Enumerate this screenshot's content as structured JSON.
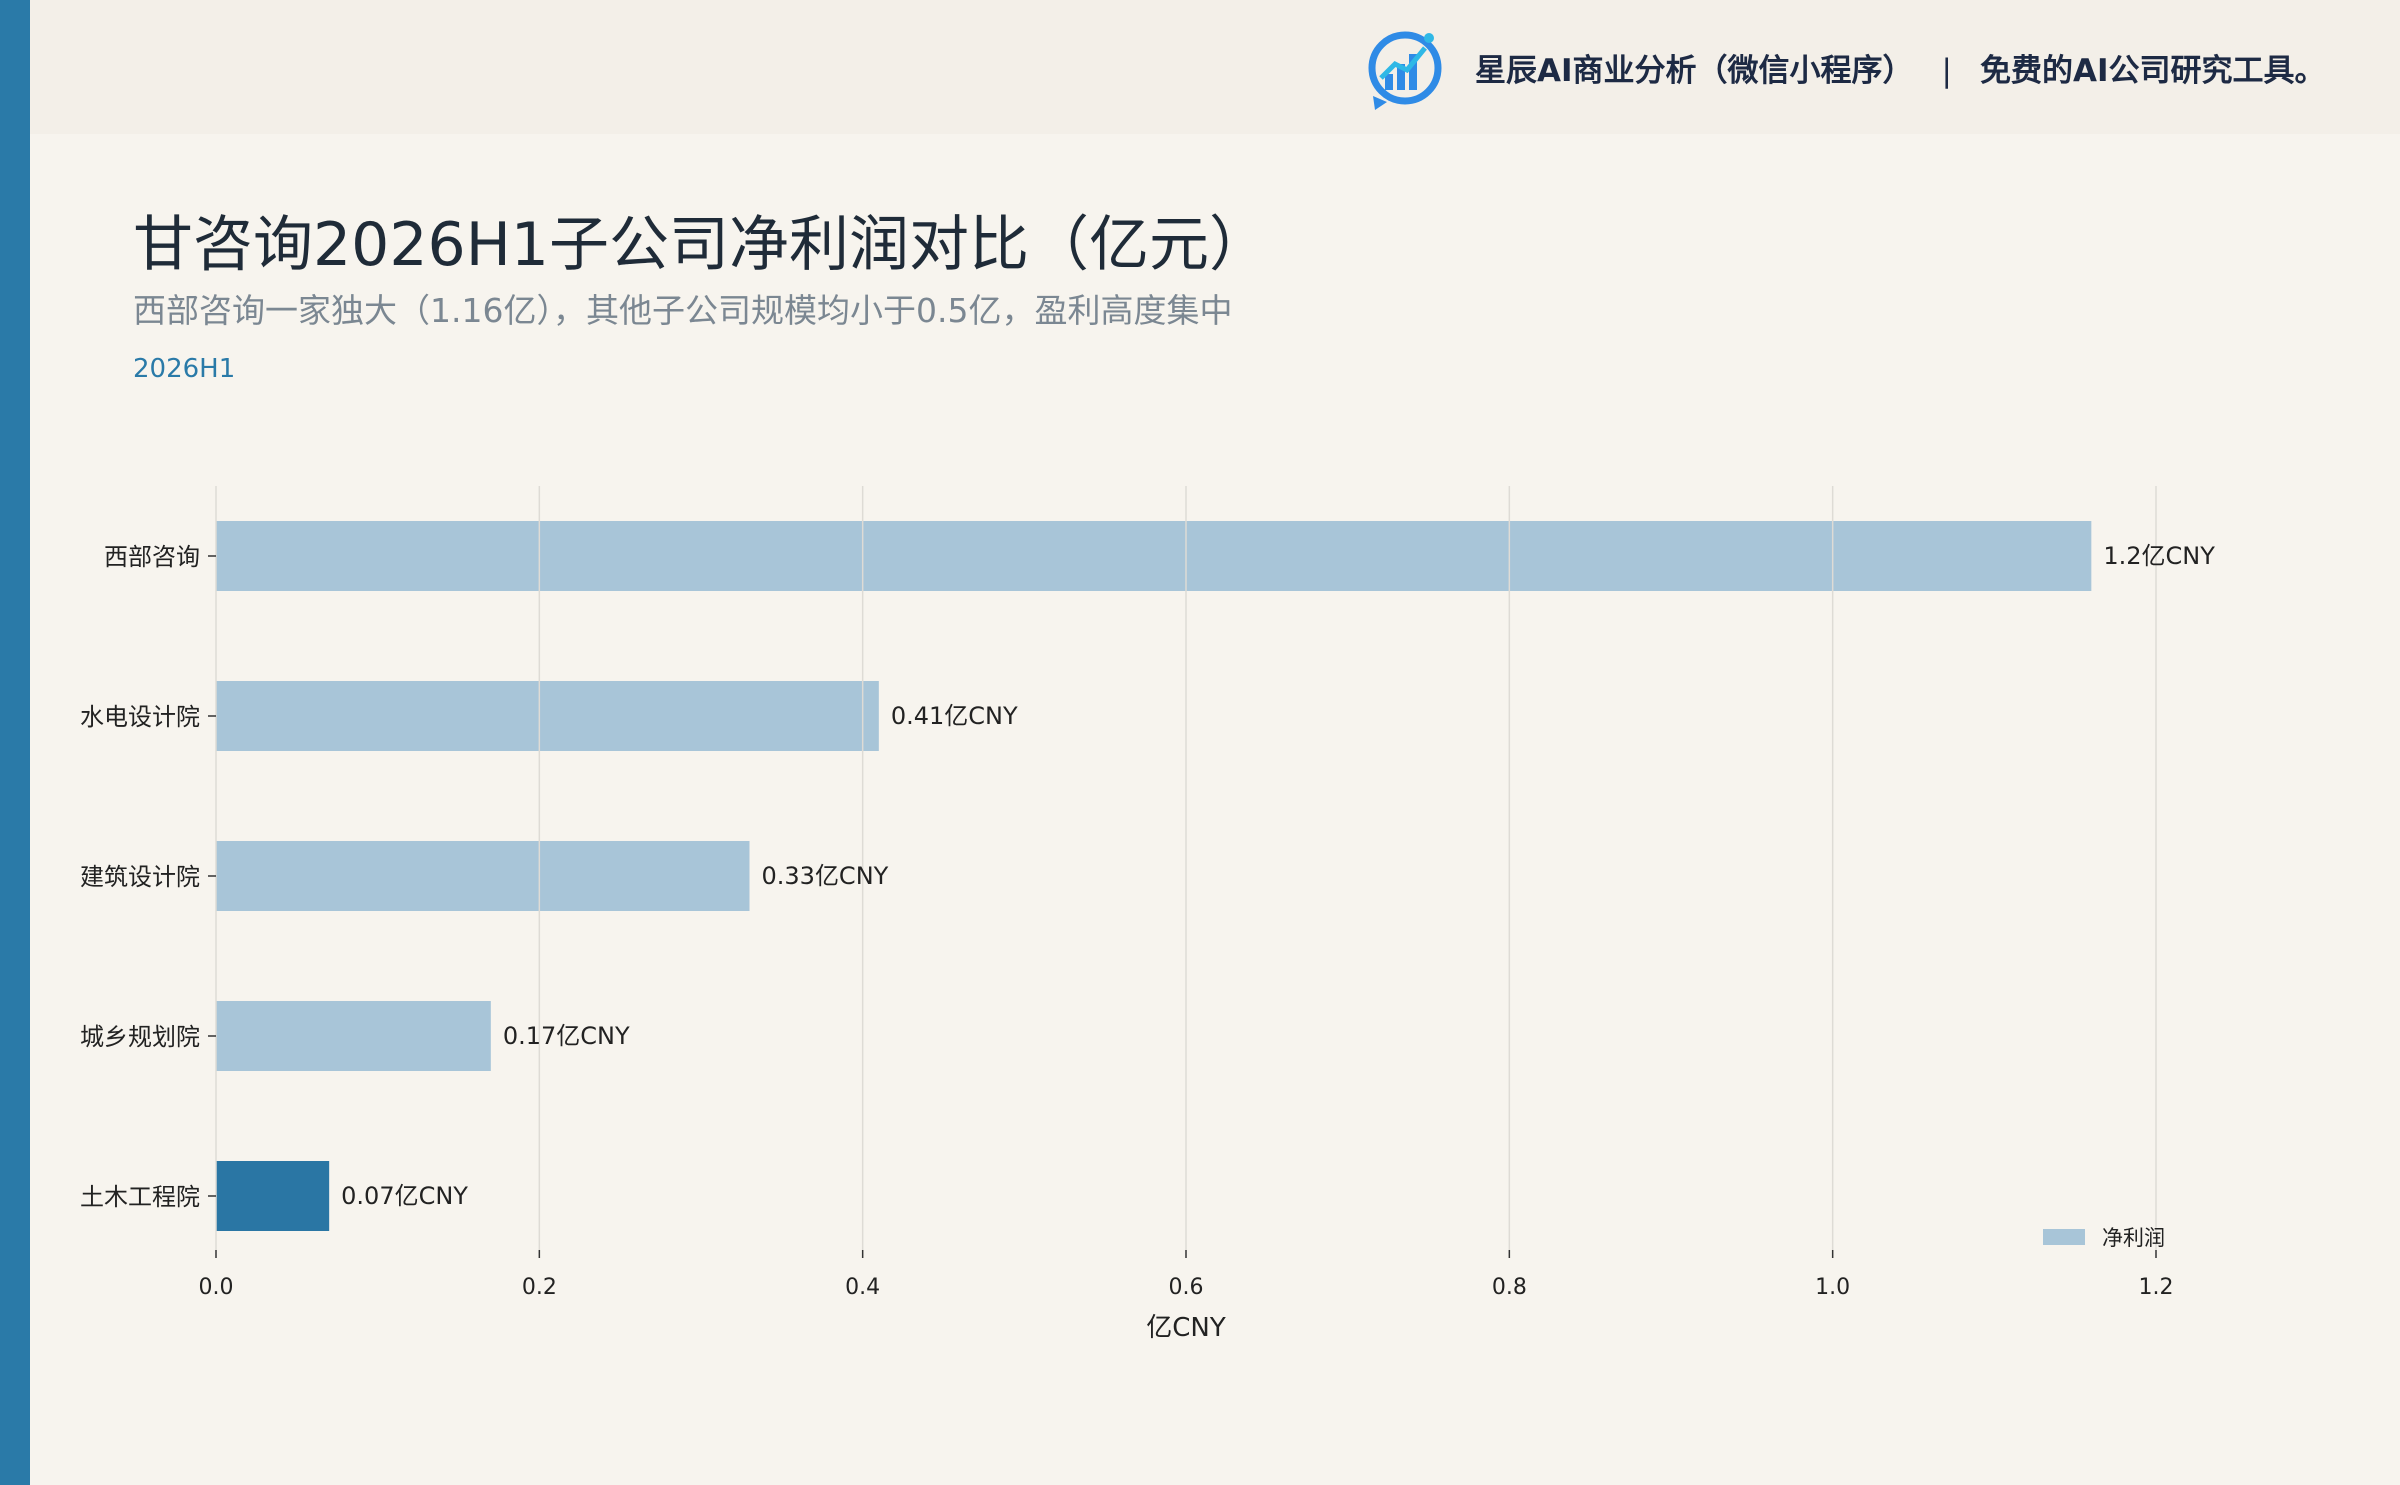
{
  "brand": {
    "logo_icon": "bar-chart-logo-icon",
    "name": "星辰AI商业分析（微信小程序）",
    "separator": "|",
    "tagline": "免费的AI公司研究工具。"
  },
  "colors": {
    "accent": "#2a7aa8",
    "bar_default": "#a8c5d8",
    "bar_highlight": "#2a76a4",
    "background": "#f7f4ee"
  },
  "chart_data": {
    "type": "bar",
    "orientation": "horizontal",
    "title": "甘咨询2026H1子公司净利润对比（亿元）",
    "subtitle": "西部咨询一家独大（1.16亿），其他子公司规模均小于0.5亿，盈利高度集中",
    "period": "2026H1",
    "xlabel": "亿CNY",
    "xlim": [
      0,
      1.2
    ],
    "xticks": [
      "0.0",
      "0.2",
      "0.4",
      "0.6",
      "0.8",
      "1.0",
      "1.2"
    ],
    "grid": true,
    "legend_position": "bottom-right",
    "categories": [
      "西部咨询",
      "水电设计院",
      "建筑设计院",
      "城乡规划院",
      "土木工程院"
    ],
    "series": [
      {
        "name": "净利润",
        "values": [
          1.16,
          0.41,
          0.33,
          0.17,
          0.07
        ],
        "data_labels": [
          "1.2亿CNY",
          "0.41亿CNY",
          "0.33亿CNY",
          "0.17亿CNY",
          "0.07亿CNY"
        ],
        "highlight": [
          false,
          false,
          false,
          false,
          true
        ]
      }
    ]
  }
}
